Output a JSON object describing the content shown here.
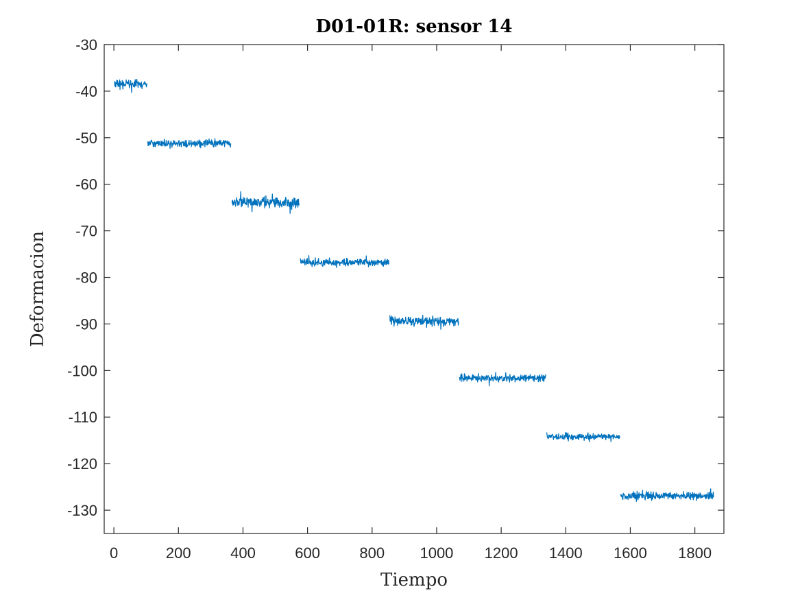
{
  "chart_data": {
    "type": "line",
    "title": "D01-01R: sensor 14",
    "xlabel": "Tiempo",
    "ylabel": "Deformacion",
    "xlim": [
      -30,
      1890
    ],
    "ylim": [
      -135,
      -30
    ],
    "xticks": [
      0,
      200,
      400,
      600,
      800,
      1000,
      1200,
      1400,
      1600,
      1800
    ],
    "yticks": [
      -30,
      -40,
      -50,
      -60,
      -70,
      -80,
      -90,
      -100,
      -110,
      -120,
      -130
    ],
    "grid": false,
    "series": [
      {
        "name": "sensor 14",
        "color": "#0072BD",
        "segments": [
          {
            "x_start": 2,
            "x_end": 102,
            "level": -38.5,
            "noise": 0.6
          },
          {
            "x_start": 105,
            "x_end": 362,
            "level": -51.2,
            "noise": 0.5
          },
          {
            "x_start": 365,
            "x_end": 575,
            "level": -63.9,
            "noise": 0.7
          },
          {
            "x_start": 578,
            "x_end": 852,
            "level": -76.8,
            "noise": 0.5
          },
          {
            "x_start": 855,
            "x_end": 1068,
            "level": -89.4,
            "noise": 0.6
          },
          {
            "x_start": 1071,
            "x_end": 1338,
            "level": -101.6,
            "noise": 0.5
          },
          {
            "x_start": 1341,
            "x_end": 1567,
            "level": -114.2,
            "noise": 0.5
          },
          {
            "x_start": 1570,
            "x_end": 1858,
            "level": -126.9,
            "noise": 0.5
          }
        ]
      }
    ]
  }
}
